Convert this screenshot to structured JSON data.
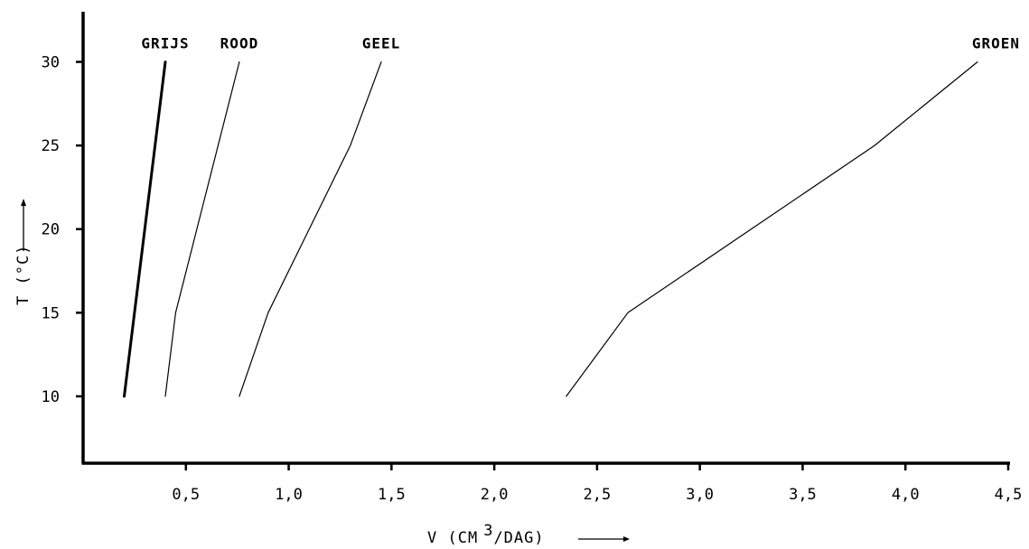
{
  "chart_data": {
    "type": "line",
    "title": "",
    "xlabel": "V (CM",
    "xlabel_sup": "3",
    "xlabel_tail": "/DAG)",
    "ylabel": "T (°C)",
    "xlim": [
      0,
      4.5
    ],
    "ylim": [
      6,
      33
    ],
    "x_ticks": [
      0.5,
      1.0,
      1.5,
      2.0,
      2.5,
      3.0,
      3.5,
      4.0,
      4.5
    ],
    "x_tick_labels": [
      "0,5",
      "1,0",
      "1,5",
      "2,0",
      "2,5",
      "3,0",
      "3,5",
      "4,0",
      "4,5"
    ],
    "y_ticks": [
      10,
      15,
      20,
      25,
      30
    ],
    "y_tick_labels": [
      "10",
      "15",
      "20",
      "25",
      "30"
    ],
    "grid": false,
    "legend": "inline labels at line tops",
    "series": [
      {
        "name": "GRIJS",
        "x": [
          0.2,
          0.4
        ],
        "y": [
          10,
          30
        ],
        "bold": true
      },
      {
        "name": "ROOD",
        "x": [
          0.4,
          0.45,
          0.76
        ],
        "y": [
          10,
          15,
          30
        ],
        "bold": false
      },
      {
        "name": "GEEL",
        "x": [
          0.76,
          0.9,
          1.3,
          1.45
        ],
        "y": [
          10,
          15,
          25,
          30
        ],
        "bold": false
      },
      {
        "name": "GROEN",
        "x": [
          2.35,
          2.65,
          3.85,
          4.35
        ],
        "y": [
          10,
          15,
          25,
          30
        ],
        "bold": false
      }
    ]
  }
}
